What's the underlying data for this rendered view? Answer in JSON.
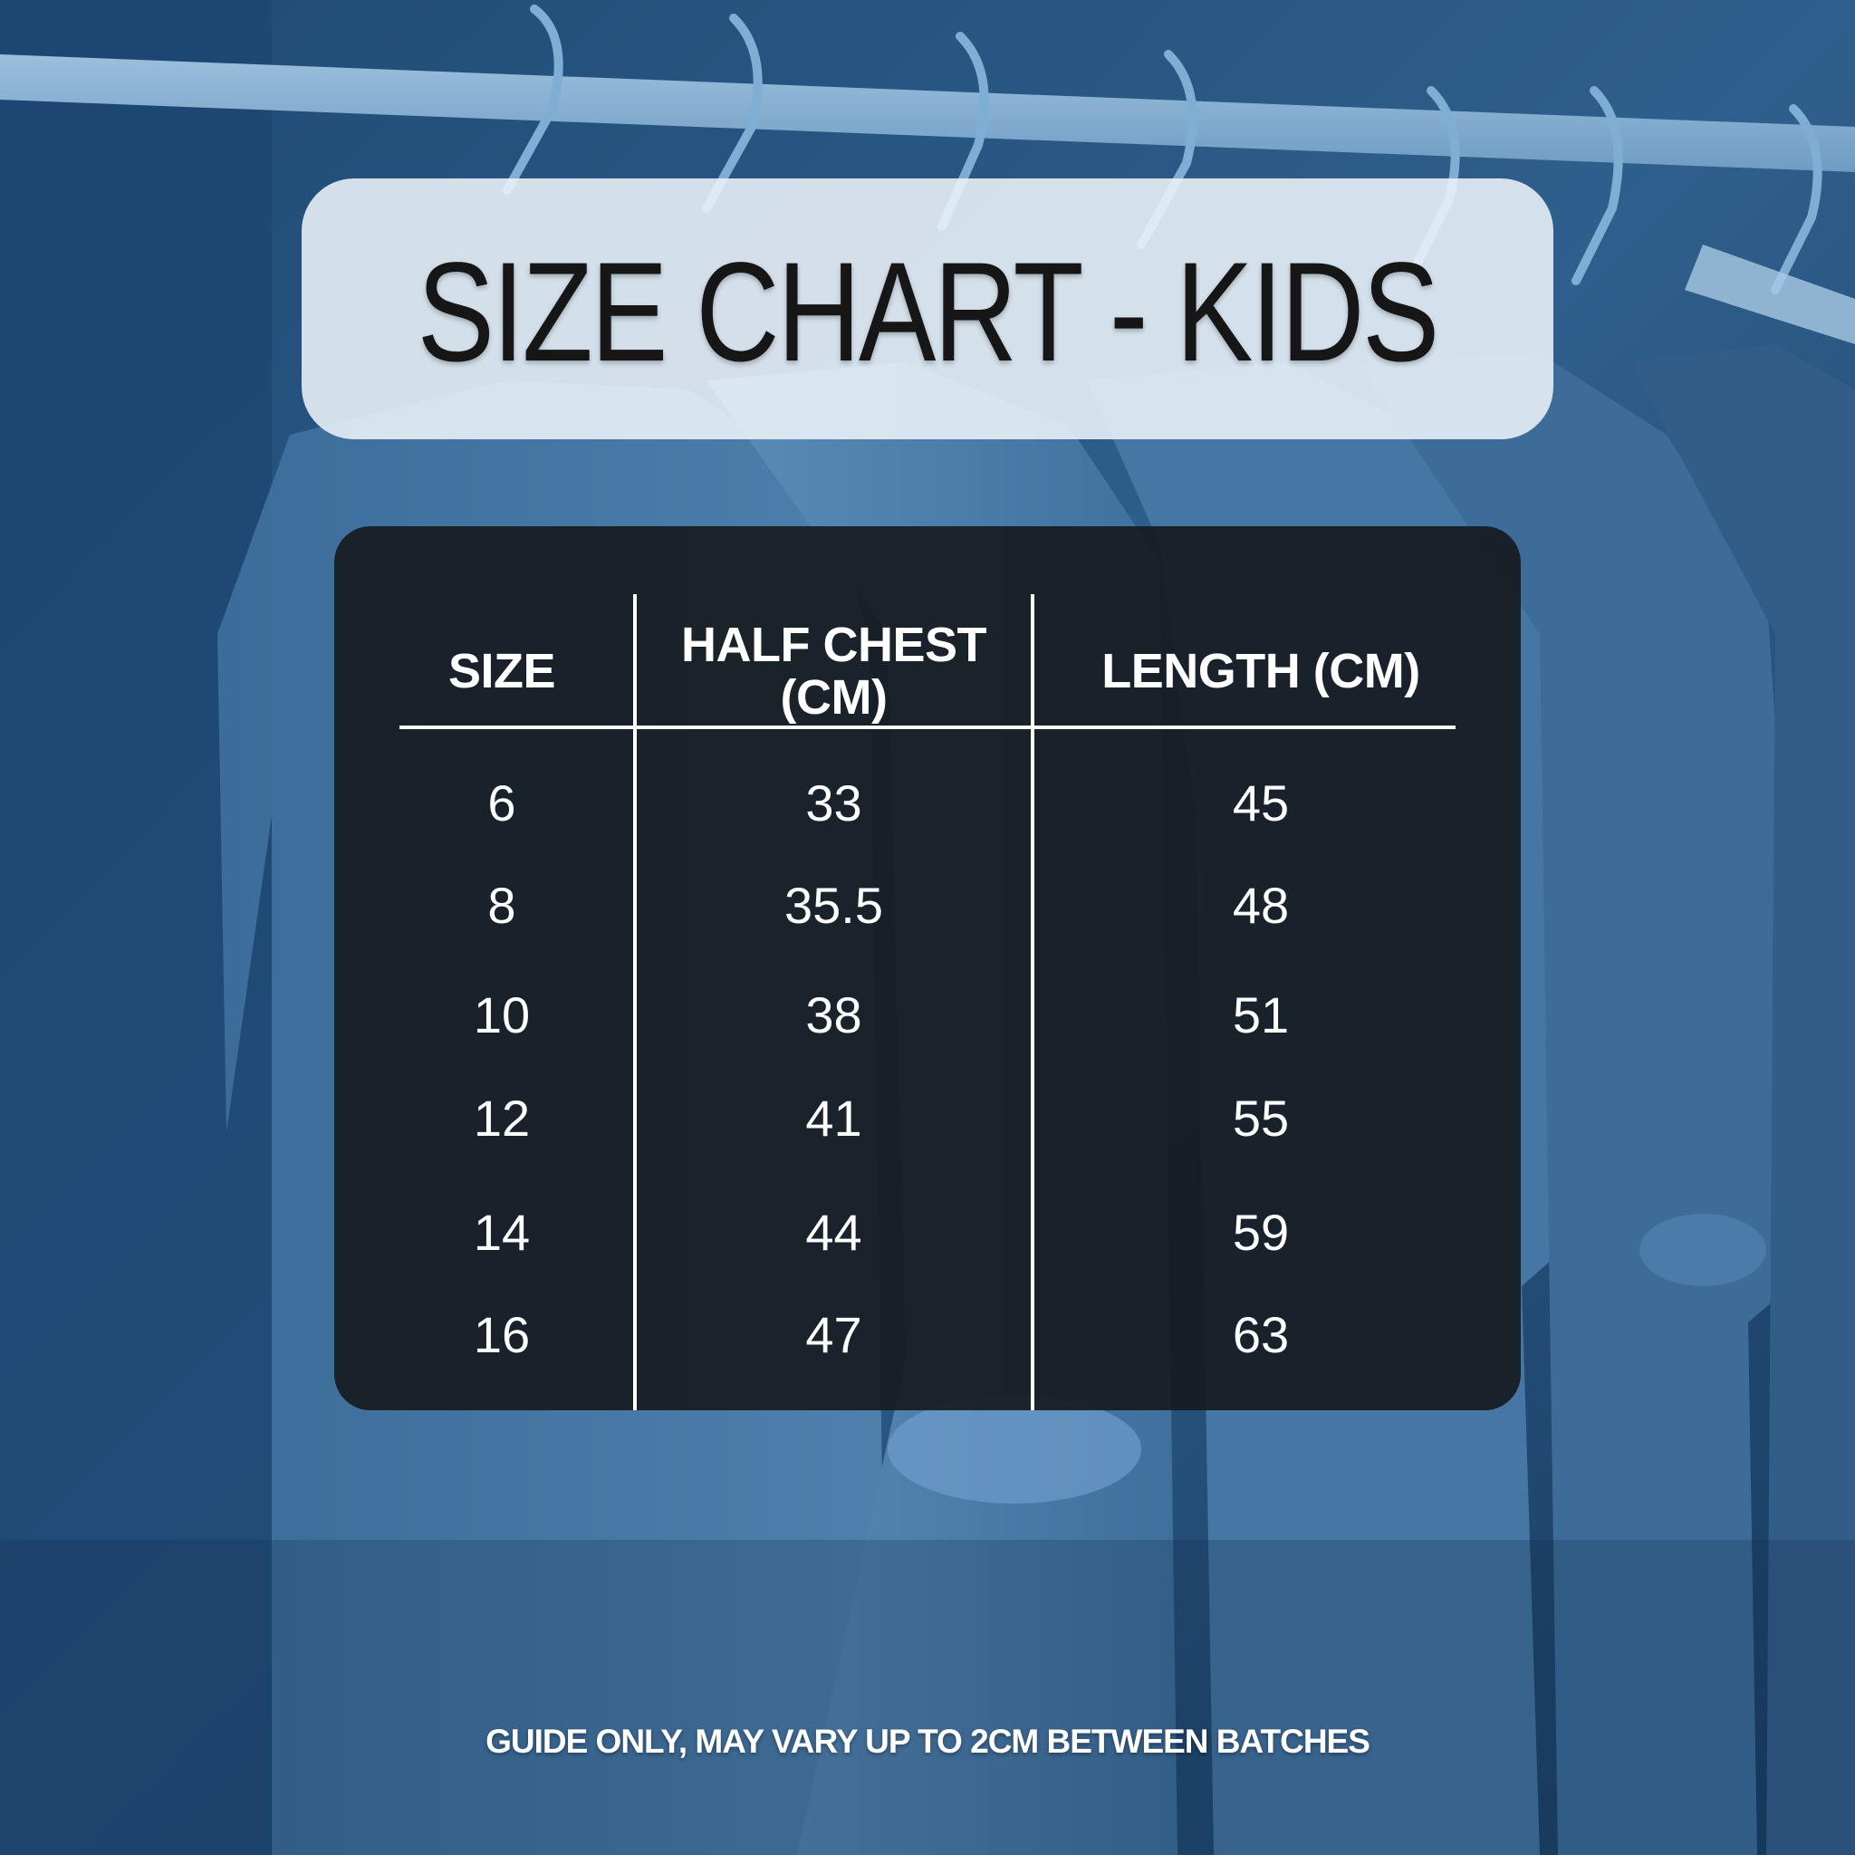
{
  "title": "SIZE CHART - KIDS",
  "table": {
    "headers": [
      "SIZE",
      "HALF CHEST",
      "(CM)",
      "LENGTH (CM)"
    ],
    "rows": [
      [
        "6",
        "33",
        "45"
      ],
      [
        "8",
        "35.5",
        "48"
      ],
      [
        "10",
        "38",
        "51"
      ],
      [
        "12",
        "41",
        "55"
      ],
      [
        "14",
        "44",
        "59"
      ],
      [
        "16",
        "47",
        "63"
      ]
    ]
  },
  "footnote": "GUIDE ONLY, MAY VARY UP TO 2CM BETWEEN BATCHES"
}
